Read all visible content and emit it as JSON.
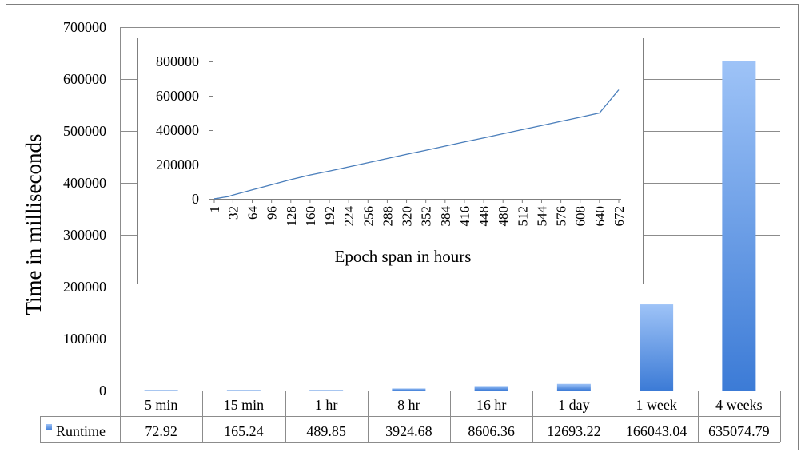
{
  "chart_data": [
    {
      "type": "bar",
      "title": "",
      "xlabel": "",
      "ylabel": "Time in milliseconds",
      "ylim": [
        0,
        700000
      ],
      "yticks": [
        "0",
        "100000",
        "200000",
        "300000",
        "400000",
        "500000",
        "600000",
        "700000"
      ],
      "grid": true,
      "legend": "data table row",
      "categories": [
        "5 min",
        "15 min",
        "1 hr",
        "8 hr",
        "16 hr",
        "1 day",
        "1 week",
        "4 weeks"
      ],
      "series": [
        {
          "name": "Runtime",
          "values": [
            72.92,
            165.24,
            489.85,
            3924.68,
            8606.36,
            12693.22,
            166043.04,
            635074.79
          ],
          "labels": [
            "72.92",
            "165.24",
            "489.85",
            "3924.68",
            "8606.36",
            "12693.22",
            "166043.04",
            "635074.79"
          ]
        }
      ],
      "colors": {
        "bar_top": "#9EC3F7",
        "bar_bottom": "#3C7BD6"
      }
    },
    {
      "type": "line",
      "title": "",
      "xlabel": "Epoch span in hours",
      "ylabel": "",
      "ylim": [
        0,
        800000
      ],
      "yticks": [
        "0",
        "200000",
        "400000",
        "600000",
        "800000"
      ],
      "xticks": [
        "1",
        "32",
        "64",
        "96",
        "128",
        "160",
        "192",
        "224",
        "256",
        "288",
        "320",
        "352",
        "384",
        "416",
        "448",
        "480",
        "512",
        "544",
        "576",
        "608",
        "640",
        "672"
      ],
      "grid": false,
      "series": [
        {
          "x": [
            1,
            8,
            16,
            24,
            32,
            64,
            96,
            128,
            160,
            192,
            224,
            256,
            288,
            320,
            352,
            384,
            416,
            448,
            480,
            512,
            544,
            576,
            608,
            640,
            672
          ],
          "values": [
            490,
            3925,
            8606,
            12693,
            22000,
            52000,
            82000,
            112000,
            139000,
            162000,
            186000,
            210000,
            235000,
            259000,
            283000,
            307000,
            331000,
            355000,
            379000,
            403000,
            427000,
            451000,
            475000,
            500000,
            635075
          ]
        }
      ],
      "colors": {
        "line": "#4A7EBB"
      }
    }
  ]
}
